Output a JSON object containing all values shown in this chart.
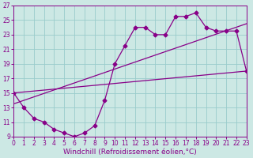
{
  "title": "",
  "xlabel": "Windchill (Refroidissement éolien,°C)",
  "bg_color": "#cce8e4",
  "line_color": "#880088",
  "grid_color": "#99cccc",
  "xlim": [
    0,
    23
  ],
  "ylim": [
    9,
    27
  ],
  "xticks": [
    0,
    1,
    2,
    3,
    4,
    5,
    6,
    7,
    8,
    9,
    10,
    11,
    12,
    13,
    14,
    15,
    16,
    17,
    18,
    19,
    20,
    21,
    22,
    23
  ],
  "yticks": [
    9,
    11,
    13,
    15,
    17,
    19,
    21,
    23,
    25,
    27
  ],
  "curve1_x": [
    0,
    1,
    2,
    3,
    4,
    5,
    6,
    7,
    8,
    9,
    10,
    11,
    12,
    13,
    14,
    15,
    16,
    17,
    18,
    19,
    20,
    21,
    22,
    23
  ],
  "curve1_y": [
    15,
    13,
    11.5,
    11,
    10,
    9.5,
    9,
    9.5,
    10.5,
    14,
    19,
    21.5,
    24,
    24,
    23,
    23,
    25.5,
    25.5,
    26,
    24,
    23.5,
    23.5,
    23.5,
    18
  ],
  "line1_x": [
    0,
    23
  ],
  "line1_y": [
    13.5,
    24.5
  ],
  "line2_x": [
    0,
    23
  ],
  "line2_y": [
    15,
    18
  ],
  "marker": "D",
  "markersize": 2.5,
  "linewidth": 0.9,
  "tick_fontsize": 5.5,
  "xlabel_fontsize": 6.5
}
